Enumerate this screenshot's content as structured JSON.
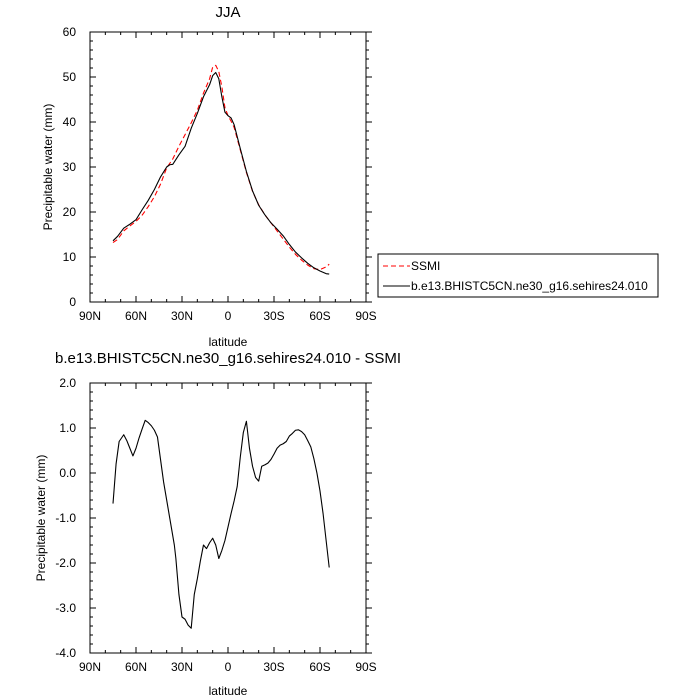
{
  "chart_data": [
    {
      "type": "line",
      "title": "JJA",
      "xlabel": "latitude",
      "ylabel": "Precipitable water (mm)",
      "xlim": [
        90,
        -90
      ],
      "ylim": [
        0,
        60
      ],
      "x_tick_values": [
        90,
        60,
        30,
        0,
        -30,
        -60,
        -90
      ],
      "x_tick_labels": [
        "90N",
        "60N",
        "30N",
        "0",
        "30S",
        "60S",
        "90S"
      ],
      "y_tick_values": [
        0,
        10,
        20,
        30,
        40,
        50,
        60
      ],
      "y_tick_labels": [
        "0",
        "10",
        "20",
        "30",
        "40",
        "50",
        "60"
      ],
      "legend_position": "right",
      "series": [
        {
          "name": "SSMI",
          "color": "#ff0000",
          "dash": "dashed",
          "x": [
            75,
            72,
            68,
            64,
            60,
            56,
            52,
            48,
            44,
            40,
            36,
            32,
            28,
            24,
            20,
            16,
            12,
            10,
            8,
            6,
            4,
            2,
            0,
            -2,
            -4,
            -8,
            -12,
            -16,
            -20,
            -24,
            -28,
            -32,
            -36,
            -40,
            -44,
            -48,
            -52,
            -56,
            -60,
            -64,
            -66
          ],
          "y": [
            13.2,
            13.9,
            15.8,
            16.9,
            17.9,
            19.3,
            21.2,
            23.4,
            26.2,
            29.8,
            31.8,
            34.6,
            37.2,
            39.8,
            42.6,
            46.4,
            49.6,
            52.2,
            52.6,
            51.2,
            47.8,
            43.2,
            41.4,
            40.2,
            38.8,
            33.8,
            28.8,
            24.6,
            21.6,
            19.4,
            17.6,
            15.8,
            14.0,
            12.2,
            10.6,
            9.3,
            8.2,
            7.4,
            7.2,
            7.8,
            8.4
          ]
        },
        {
          "name": "b.e13.BHISTC5CN.ne30_g16.sehires24.010",
          "color": "#000000",
          "dash": "solid",
          "x": [
            75,
            72,
            68,
            64,
            60,
            56,
            52,
            48,
            44,
            40,
            38,
            36,
            32,
            28,
            24,
            20,
            16,
            12,
            10,
            8,
            6,
            4,
            2,
            0,
            -2,
            -4,
            -8,
            -12,
            -16,
            -20,
            -24,
            -28,
            -32,
            -36,
            -40,
            -44,
            -48,
            -52,
            -56,
            -60,
            -64,
            -66
          ],
          "y": [
            13.6,
            14.6,
            16.4,
            17.3,
            18.3,
            20.5,
            22.6,
            25.0,
            27.8,
            30.0,
            30.5,
            30.6,
            32.7,
            34.6,
            38.6,
            41.9,
            45.6,
            48.3,
            50.3,
            51.0,
            49.6,
            45.6,
            42.2,
            41.4,
            40.9,
            39.4,
            34.1,
            29.0,
            24.7,
            21.5,
            19.4,
            17.6,
            16.2,
            14.7,
            12.8,
            11.1,
            9.8,
            8.6,
            7.6,
            6.9,
            6.3,
            6.2
          ]
        }
      ]
    },
    {
      "type": "line",
      "title": "b.e13.BHISTC5CN.ne30_g16.sehires24.010 - SSMI",
      "xlabel": "latitude",
      "ylabel": "Precipitable water (mm)",
      "xlim": [
        90,
        -90
      ],
      "ylim": [
        -4.0,
        2.0
      ],
      "x_tick_values": [
        90,
        60,
        30,
        0,
        -30,
        -60,
        -90
      ],
      "x_tick_labels": [
        "90N",
        "60N",
        "30N",
        "0",
        "30S",
        "60S",
        "90S"
      ],
      "y_tick_values": [
        2.0,
        1.0,
        0.0,
        -1.0,
        -2.0,
        -3.0,
        -4.0
      ],
      "y_tick_labels": [
        "2.0",
        "1.0",
        "0.0",
        "-1.0",
        "-2.0",
        "-3.0",
        "-4.0"
      ],
      "series": [
        {
          "color": "#000000",
          "dash": "solid",
          "x": [
            75,
            73,
            71,
            68,
            66,
            64,
            62,
            60,
            58,
            56,
            54,
            52,
            50,
            48,
            46,
            44,
            42,
            40,
            38,
            36,
            35,
            34,
            32,
            30,
            28,
            26,
            24,
            22,
            20,
            18,
            16,
            14,
            12,
            10,
            8,
            6,
            4,
            2,
            0,
            -2,
            -4,
            -6,
            -8,
            -10,
            -12,
            -14,
            -16,
            -18,
            -20,
            -22,
            -24,
            -26,
            -28,
            -30,
            -32,
            -34,
            -36,
            -38,
            -40,
            -42,
            -44,
            -46,
            -48,
            -50,
            -52,
            -54,
            -56,
            -58,
            -60,
            -62,
            -64,
            -66
          ],
          "y": [
            -0.68,
            0.2,
            0.7,
            0.85,
            0.72,
            0.55,
            0.38,
            0.55,
            0.78,
            0.98,
            1.17,
            1.12,
            1.05,
            0.95,
            0.8,
            0.3,
            -0.2,
            -0.6,
            -1.0,
            -1.4,
            -1.6,
            -1.9,
            -2.7,
            -3.2,
            -3.25,
            -3.38,
            -3.45,
            -2.7,
            -2.35,
            -1.95,
            -1.6,
            -1.68,
            -1.55,
            -1.45,
            -1.6,
            -1.9,
            -1.72,
            -1.5,
            -1.2,
            -0.9,
            -0.62,
            -0.3,
            0.35,
            0.9,
            1.15,
            0.55,
            0.15,
            -0.1,
            -0.18,
            0.15,
            0.18,
            0.22,
            0.3,
            0.42,
            0.55,
            0.62,
            0.65,
            0.7,
            0.82,
            0.88,
            0.95,
            0.96,
            0.92,
            0.85,
            0.72,
            0.58,
            0.32,
            0.0,
            -0.4,
            -0.9,
            -1.5,
            -2.1
          ]
        }
      ]
    }
  ]
}
